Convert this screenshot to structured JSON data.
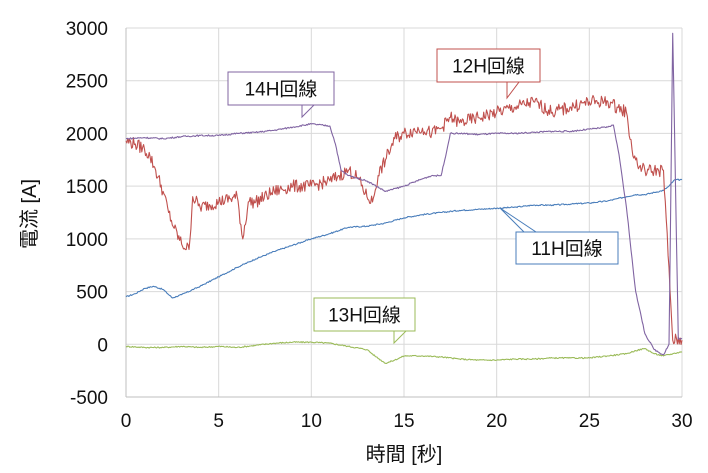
{
  "chart_data": {
    "type": "line",
    "xlabel": "時間 [秒]",
    "ylabel": "電流 [A]",
    "xlim": [
      0,
      30
    ],
    "ylim": [
      -500,
      3000
    ],
    "xticks": [
      0,
      5,
      10,
      15,
      20,
      25,
      30
    ],
    "yticks": [
      -500,
      0,
      500,
      1000,
      1500,
      2000,
      2500,
      3000
    ],
    "grid": true,
    "legend": "none",
    "series": [
      {
        "key": "11H",
        "name": "11H回線",
        "color": "#4a7ebb",
        "noise": 6,
        "x": [
          0,
          0.5,
          1,
          1.5,
          2,
          2.5,
          3,
          4,
          5,
          6,
          7,
          8,
          9,
          10,
          11,
          12,
          13,
          14,
          15,
          16,
          17,
          18,
          19,
          20,
          21,
          22,
          23,
          24,
          25,
          26,
          27,
          27.5,
          28,
          28.5,
          29,
          29.3,
          29.6,
          30
        ],
        "values": [
          450,
          480,
          530,
          550,
          520,
          440,
          470,
          550,
          640,
          730,
          810,
          880,
          940,
          1000,
          1050,
          1110,
          1120,
          1150,
          1200,
          1230,
          1250,
          1270,
          1280,
          1290,
          1300,
          1320,
          1320,
          1330,
          1340,
          1360,
          1400,
          1420,
          1420,
          1440,
          1460,
          1500,
          1560,
          1560
        ]
      },
      {
        "key": "12H",
        "name": "12H回線",
        "color": "#c0504d",
        "noise": 60,
        "x": [
          0,
          0.5,
          1,
          1.3,
          1.6,
          2,
          2.3,
          2.6,
          3,
          3.4,
          3.6,
          4,
          5,
          6,
          6.3,
          6.6,
          7,
          8,
          9,
          10,
          11,
          11.5,
          12,
          12.5,
          13,
          13.3,
          13.6,
          14,
          14.5,
          15,
          16,
          16.5,
          17,
          17.5,
          18,
          19,
          20,
          21,
          22,
          23,
          24,
          25,
          26,
          26.5,
          27,
          27.3,
          27.6,
          28,
          28.5,
          29,
          29.5,
          30
        ],
        "values": [
          1930,
          1900,
          1850,
          1780,
          1650,
          1450,
          1250,
          1100,
          950,
          900,
          1400,
          1300,
          1350,
          1400,
          1000,
          1350,
          1350,
          1450,
          1500,
          1500,
          1550,
          1600,
          1650,
          1580,
          1400,
          1350,
          1600,
          1750,
          1950,
          2000,
          2050,
          2000,
          2050,
          2150,
          2100,
          2150,
          2200,
          2250,
          2300,
          2200,
          2250,
          2300,
          2300,
          2250,
          2200,
          1850,
          1700,
          1650,
          1650,
          1650,
          40,
          40
        ]
      },
      {
        "key": "13H",
        "name": "13H回線",
        "color": "#9bbb59",
        "noise": 6,
        "x": [
          0,
          1,
          2,
          3,
          4,
          5,
          6,
          7,
          8,
          9,
          10,
          11,
          12,
          13,
          13.5,
          14,
          14.5,
          15,
          16,
          17,
          18,
          19,
          20,
          21,
          22,
          23,
          24,
          25,
          26,
          27,
          27.5,
          28,
          28.5,
          29,
          29.5,
          30
        ],
        "values": [
          -20,
          -30,
          -30,
          -20,
          -30,
          -20,
          -30,
          -10,
          10,
          20,
          20,
          10,
          -20,
          -50,
          -120,
          -180,
          -150,
          -110,
          -110,
          -120,
          -140,
          -150,
          -150,
          -140,
          -140,
          -130,
          -130,
          -130,
          -110,
          -90,
          -60,
          -40,
          -90,
          -110,
          -90,
          -70
        ]
      },
      {
        "key": "14H",
        "name": "14H回線",
        "color": "#8064a2",
        "noise": 7,
        "x": [
          0,
          1,
          2,
          3,
          4,
          5,
          6,
          7,
          8,
          9,
          10,
          11,
          11.3,
          11.6,
          12,
          13,
          14,
          15,
          16,
          16.5,
          17,
          17.2,
          17.5,
          18,
          19,
          20,
          21,
          22,
          23,
          24,
          25,
          26,
          26.3,
          26.6,
          27,
          27.5,
          28,
          28.5,
          29,
          29.3,
          29.5,
          29.8,
          30
        ],
        "values": [
          1950,
          1960,
          1950,
          1970,
          1980,
          1980,
          2000,
          2010,
          2030,
          2060,
          2090,
          2070,
          1900,
          1650,
          1600,
          1550,
          1450,
          1500,
          1570,
          1600,
          1600,
          1750,
          2000,
          2000,
          1990,
          2000,
          2000,
          2010,
          2020,
          2020,
          2040,
          2060,
          2080,
          1800,
          1300,
          500,
          100,
          -50,
          -100,
          0,
          2950,
          50,
          50
        ]
      }
    ],
    "annotations": [
      {
        "text": "14H回線",
        "series": "14H"
      },
      {
        "text": "12H回線",
        "series": "12H"
      },
      {
        "text": "11H回線",
        "series": "11H"
      },
      {
        "text": "13H回線",
        "series": "13H"
      }
    ]
  }
}
